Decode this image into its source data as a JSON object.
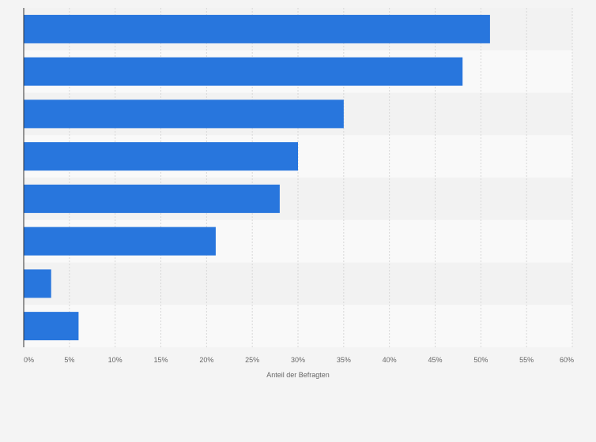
{
  "chart_data": {
    "type": "bar",
    "orientation": "horizontal",
    "title": "",
    "xlabel": "Anteil der Befragten",
    "ylabel": "",
    "xlim": [
      0,
      60
    ],
    "x_ticks": [
      "0%",
      "5%",
      "10%",
      "15%",
      "20%",
      "25%",
      "30%",
      "35%",
      "40%",
      "45%",
      "50%",
      "55%",
      "60%"
    ],
    "categories": [
      "",
      "",
      "",
      "",
      "",
      "",
      "",
      ""
    ],
    "values": [
      51,
      48,
      35,
      30,
      28,
      21,
      3,
      6
    ],
    "value_unit": "%",
    "grid": true,
    "legend": "none",
    "colors": {
      "bar": "#2876dd",
      "band_dark": "#f2f2f2",
      "band_light": "#f9f9f9",
      "grid": "#d7d7d7",
      "axis": "#333333",
      "label_text": "#666666",
      "page_bg": "#f4f4f4"
    }
  }
}
